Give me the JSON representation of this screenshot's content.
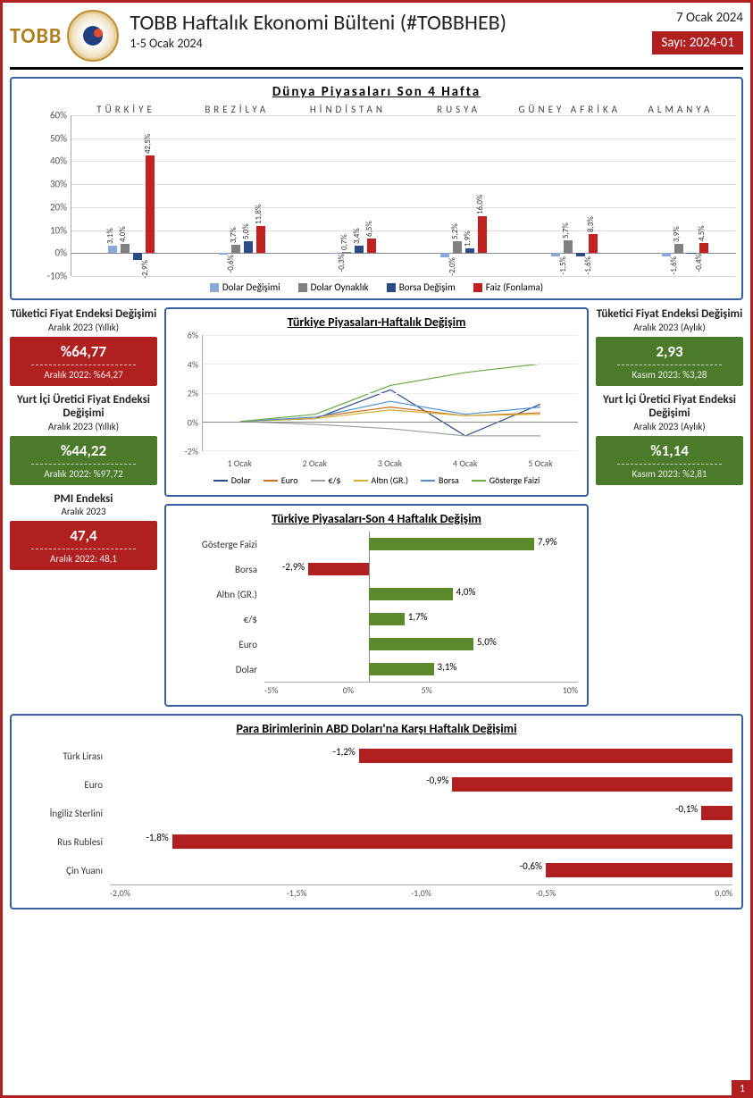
{
  "header": {
    "brand": "TOBB",
    "title": "TOBB Haftalık Ekonomi Bülteni (#TOBBHEB)",
    "subtitle": "1-5 Ocak 2024",
    "date": "7 Ocak 2024",
    "issue": "Sayı: 2024-01"
  },
  "colors": {
    "red": "#b02020",
    "green": "#5a8a2a",
    "lightblue": "#8aa8d8",
    "gray": "#808080",
    "darkgray": "#606060",
    "navy": "#2a4a8a",
    "orange": "#d07020",
    "silver": "#a0a0a0",
    "gold": "#d0b030",
    "skyblue": "#5090d0",
    "lime": "#6aaa4a"
  },
  "world_chart": {
    "title": "Dünya Piyasaları Son 4 Hafta",
    "y_ticks": [
      "60%",
      "50%",
      "40%",
      "30%",
      "20%",
      "10%",
      "0%",
      "-10%"
    ],
    "y_min": -10,
    "y_max": 60,
    "countries": [
      "TÜRKİYE",
      "BREZİLYA",
      "HİNDİSTAN",
      "RUSYA",
      "GÜNEY AFRİKA",
      "ALMANYA"
    ],
    "series_names": [
      "Dolar Değişimi",
      "Dolar Oynaklık",
      "Borsa Değişim",
      "Faiz (Fonlama)"
    ],
    "groups": [
      {
        "values": [
          3.1,
          4.0,
          -2.9,
          42.5
        ],
        "labels": [
          "3,1%",
          "4,0%",
          "-2,9%",
          "42,5%"
        ]
      },
      {
        "values": [
          -0.6,
          3.7,
          5.0,
          11.8
        ],
        "labels": [
          "-0,6%",
          "3,7%",
          "5,0%",
          "11,8%"
        ]
      },
      {
        "values": [
          -0.3,
          0.7,
          3.4,
          6.5
        ],
        "labels": [
          "-0,3%",
          "0,7%",
          "3,4%",
          "6,5%"
        ]
      },
      {
        "values": [
          -2.0,
          5.2,
          1.9,
          16.0
        ],
        "labels": [
          "-2,0%",
          "5,2%",
          "1,9%",
          "16,0%"
        ]
      },
      {
        "values": [
          -1.5,
          5.7,
          -1.6,
          8.3
        ],
        "labels": [
          "-1,5%",
          "5,7%",
          "-1,6%",
          "8,3%"
        ]
      },
      {
        "values": [
          -1.6,
          3.9,
          -0.4,
          4.5
        ],
        "labels": [
          "-1,6%",
          "3,9%",
          "-0,4%",
          "4,5%"
        ]
      }
    ],
    "series_colors": [
      "#8aa8d8",
      "#808080",
      "#2a4a8a",
      "#c02020"
    ]
  },
  "left_stats": [
    {
      "title": "Tüketici Fiyat Endeksi Değişimi",
      "sub": "Aralık 2023 (Yıllık)",
      "value": "%64,77",
      "prev": "Aralık 2022: %64,27",
      "color": "red"
    },
    {
      "title": "Yurt İçi Üretici Fiyat Endeksi Değişimi",
      "sub": "Aralık 2023 (Yıllık)",
      "value": "%44,22",
      "prev": "Aralık 2022: %97,72",
      "color": "green"
    },
    {
      "title": "PMI Endeksi",
      "sub": "Aralık 2023",
      "value": "47,4",
      "prev": "Aralık 2022: 48,1",
      "color": "red"
    }
  ],
  "right_stats": [
    {
      "title": "Tüketici Fiyat Endeksi Değişimi",
      "sub": "Aralık 2023 (Aylık)",
      "value": "2,93",
      "prev": "Kasım 2023: %3,28",
      "color": "green"
    },
    {
      "title": "Yurt İçi Üretici Fiyat Endeksi Değişimi",
      "sub": "Aralık 2023 (Aylık)",
      "value": "%1,14",
      "prev": "Kasım 2023: %2,81",
      "color": "green"
    }
  ],
  "weekly_line": {
    "title": "Türkiye Piyasaları-Haftalık Değişim",
    "y_ticks": [
      "6%",
      "4%",
      "2%",
      "0%",
      "-2%"
    ],
    "y_min": -2,
    "y_max": 6,
    "x_labels": [
      "1 Ocak",
      "2 Ocak",
      "3 Ocak",
      "4 Ocak",
      "5 Ocak"
    ],
    "series": [
      {
        "name": "Dolar",
        "color": "#2a4a8a",
        "values": [
          0,
          0.2,
          2.2,
          -1.0,
          1.2
        ]
      },
      {
        "name": "Euro",
        "color": "#d07020",
        "values": [
          0,
          0.3,
          1.0,
          0.4,
          0.6
        ]
      },
      {
        "name": "€/$",
        "color": "#a0a0a0",
        "values": [
          0,
          -0.2,
          -0.5,
          -1.0,
          -1.0
        ]
      },
      {
        "name": "Altın (GR.)",
        "color": "#d0b030",
        "values": [
          0,
          0.2,
          0.8,
          0.4,
          0.5
        ]
      },
      {
        "name": "Borsa",
        "color": "#5090d0",
        "values": [
          0,
          0.3,
          1.4,
          0.5,
          1.0
        ]
      },
      {
        "name": "Gösterge Faizi",
        "color": "#6aaa4a",
        "values": [
          0,
          0.5,
          2.5,
          3.4,
          4.0
        ]
      }
    ]
  },
  "four_week": {
    "title": "Türkiye Piyasaları-Son 4 Haftalık Değişim",
    "x_min": -5,
    "x_max": 10,
    "x_ticks": [
      "-5%",
      "0%",
      "5%",
      "10%"
    ],
    "items": [
      {
        "label": "Gösterge Faizi",
        "value": 7.9,
        "text": "7,9%",
        "color": "#5a8a2a"
      },
      {
        "label": "Borsa",
        "value": -2.9,
        "text": "-2,9%",
        "color": "#b02020"
      },
      {
        "label": "Altın (GR.)",
        "value": 4.0,
        "text": "4,0%",
        "color": "#5a8a2a"
      },
      {
        "label": "€/$",
        "value": 1.7,
        "text": "1,7%",
        "color": "#5a8a2a"
      },
      {
        "label": "Euro",
        "value": 5.0,
        "text": "5,0%",
        "color": "#5a8a2a"
      },
      {
        "label": "Dolar",
        "value": 3.1,
        "text": "3,1%",
        "color": "#5a8a2a"
      }
    ]
  },
  "currency": {
    "title": "Para Birimlerinin ABD Doları'na Karşı Haftalık Değişimi",
    "x_min": -2.0,
    "x_max": 0.0,
    "x_ticks": [
      "-2,0%",
      "-1,5%",
      "-1,0%",
      "-0,5%",
      "0,0%"
    ],
    "items": [
      {
        "label": "Türk Lirası",
        "value": -1.2,
        "text": "-1,2%"
      },
      {
        "label": "Euro",
        "value": -0.9,
        "text": "-0,9%"
      },
      {
        "label": "İngiliz Sterlini",
        "value": -0.1,
        "text": "-0,1%"
      },
      {
        "label": "Rus Rublesi",
        "value": -1.8,
        "text": "-1,8%"
      },
      {
        "label": "Çin Yuanı",
        "value": -0.6,
        "text": "-0,6%"
      }
    ],
    "bar_color": "#b02020"
  },
  "page_num": "1"
}
